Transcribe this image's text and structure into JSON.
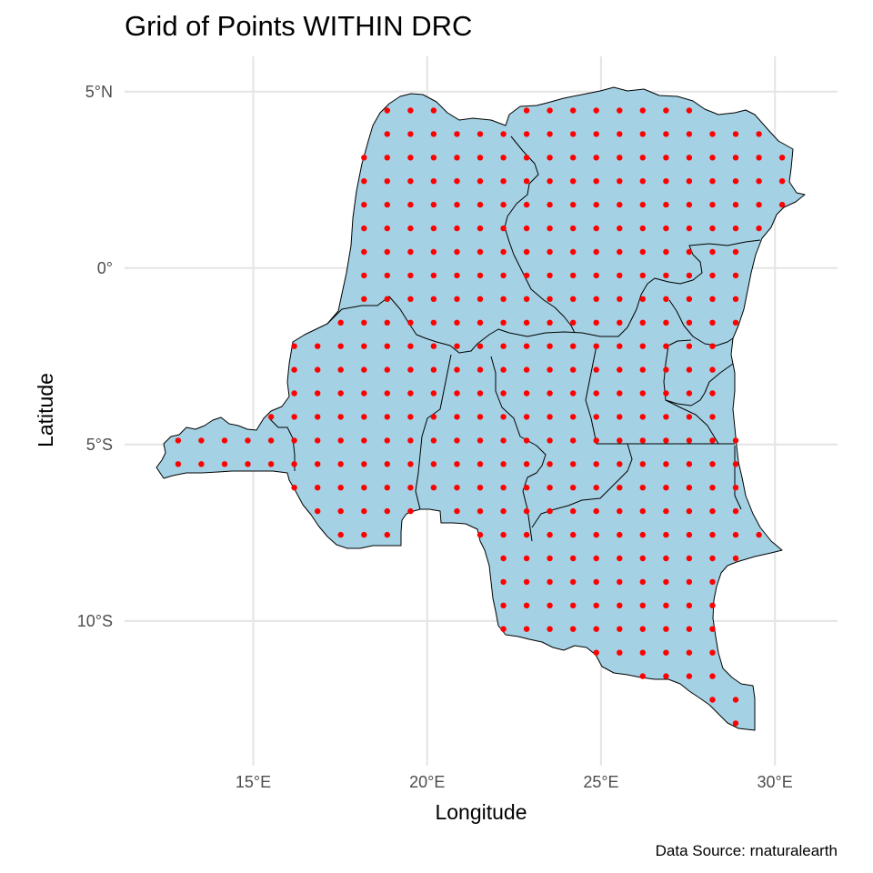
{
  "title": "Grid of Points WITHIN DRC",
  "xlabel": "Longitude",
  "ylabel": "Latitude",
  "caption": "Data Source: rnaturalearth",
  "colors": {
    "land": "#a4d1e3",
    "border": "#000000",
    "points": "#ff0000",
    "grid": "#e6e6e6"
  },
  "chart_data": {
    "type": "scatter",
    "map": "Democratic Republic of the Congo",
    "xlim": [
      11.3,
      31.8
    ],
    "ylim": [
      -14.1,
      6.0
    ],
    "x_ticks": [
      {
        "value": 15,
        "label": "15°E"
      },
      {
        "value": 20,
        "label": "20°E"
      },
      {
        "value": 25,
        "label": "25°E"
      },
      {
        "value": 30,
        "label": "30°E"
      }
    ],
    "y_ticks": [
      {
        "value": 5,
        "label": "5°N"
      },
      {
        "value": 0,
        "label": "0°"
      },
      {
        "value": -5,
        "label": "5°S"
      },
      {
        "value": -10,
        "label": "10°S"
      }
    ],
    "grid": true,
    "grid_points": {
      "lon_start": 12.84,
      "lat_start": -12.9,
      "spacing": 0.668,
      "color": "#ff0000"
    }
  }
}
